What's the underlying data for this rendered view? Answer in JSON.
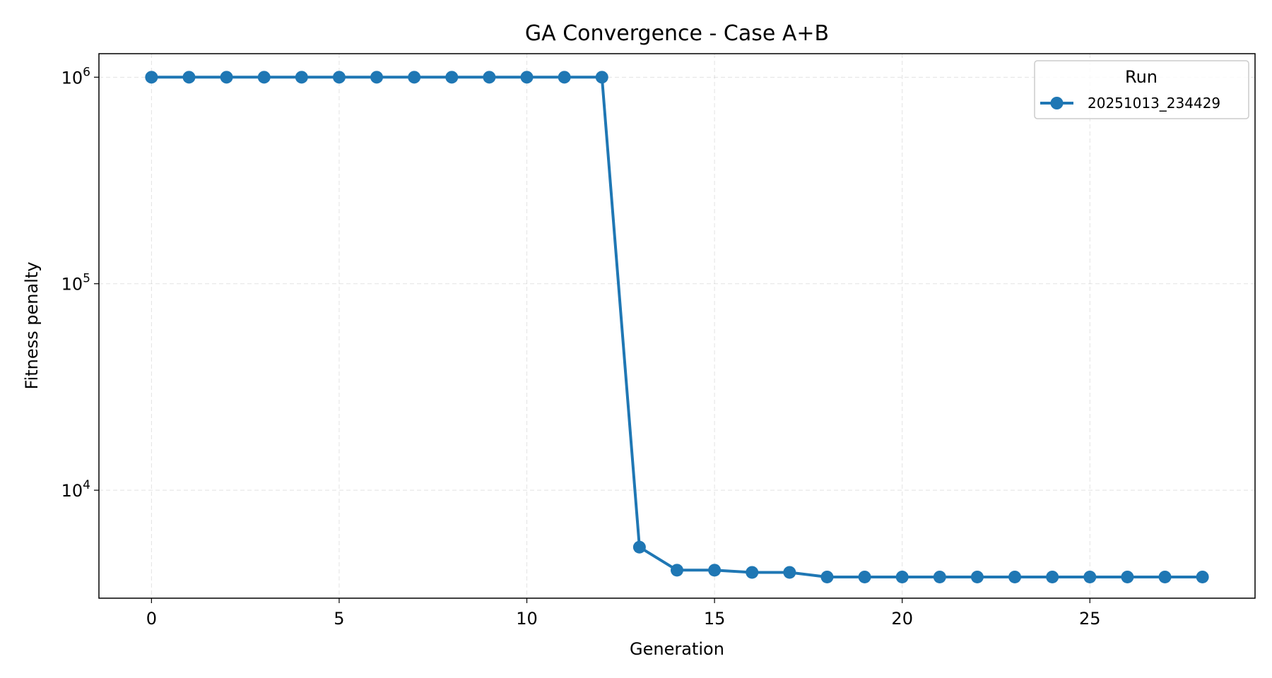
{
  "chart_data": {
    "type": "line",
    "title": "GA Convergence - Case A+B",
    "xlabel": "Generation",
    "ylabel": "Fitness penalty",
    "xlim": [
      -1.4,
      29.4
    ],
    "ylim": [
      3000,
      1300000
    ],
    "yscale": "log",
    "grid": true,
    "x_ticks": [
      0,
      5,
      10,
      15,
      20,
      25
    ],
    "x_tick_labels": [
      "0",
      "5",
      "10",
      "15",
      "20",
      "25"
    ],
    "y_ticks": [
      {
        "value": 1000000,
        "base": "10",
        "exp": "6"
      },
      {
        "value": 100000,
        "base": "10",
        "exp": "5"
      },
      {
        "value": 10000,
        "base": "10",
        "exp": "4"
      }
    ],
    "legend": {
      "title": "Run",
      "placement": "top-right"
    },
    "series": [
      {
        "name": "20251013_234429",
        "color": "#1f77b4",
        "marker": "circle",
        "x": [
          0,
          1,
          2,
          3,
          4,
          5,
          6,
          7,
          8,
          9,
          10,
          11,
          12,
          13,
          14,
          15,
          16,
          17,
          18,
          19,
          20,
          21,
          22,
          23,
          24,
          25,
          26,
          27,
          28
        ],
        "y": [
          1000000,
          1000000,
          1000000,
          1000000,
          1000000,
          1000000,
          1000000,
          1000000,
          1000000,
          1000000,
          1000000,
          1000000,
          1000000,
          5300,
          4100,
          4100,
          4000,
          4000,
          3800,
          3800,
          3800,
          3800,
          3800,
          3800,
          3800,
          3800,
          3800,
          3800,
          3800
        ]
      }
    ]
  }
}
